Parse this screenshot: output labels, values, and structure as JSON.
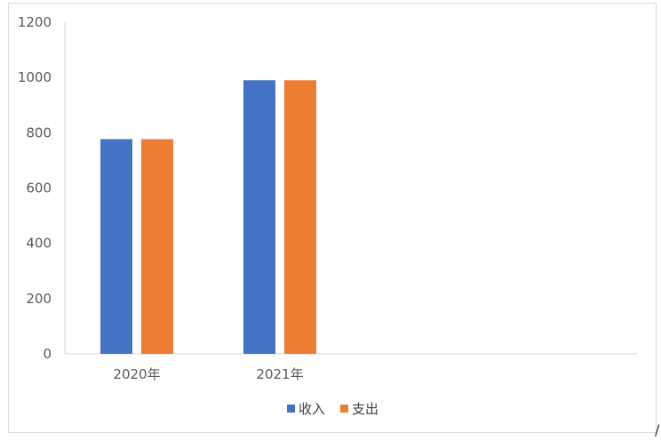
{
  "chart_data": {
    "type": "bar",
    "title": "",
    "xlabel": "",
    "ylabel": "",
    "categories": [
      "2020年",
      "2021年"
    ],
    "series": [
      {
        "name": "收入",
        "color": "#4472c4",
        "values": [
          777,
          990
        ]
      },
      {
        "name": "支出",
        "color": "#ed7d31",
        "values": [
          777,
          990
        ]
      }
    ],
    "ylim": [
      0,
      1200
    ],
    "yticks": [
      "0",
      "200",
      "400",
      "600",
      "800",
      "1000",
      "1200"
    ],
    "grid": false,
    "legend": "bottom"
  },
  "corner_mark": "/"
}
